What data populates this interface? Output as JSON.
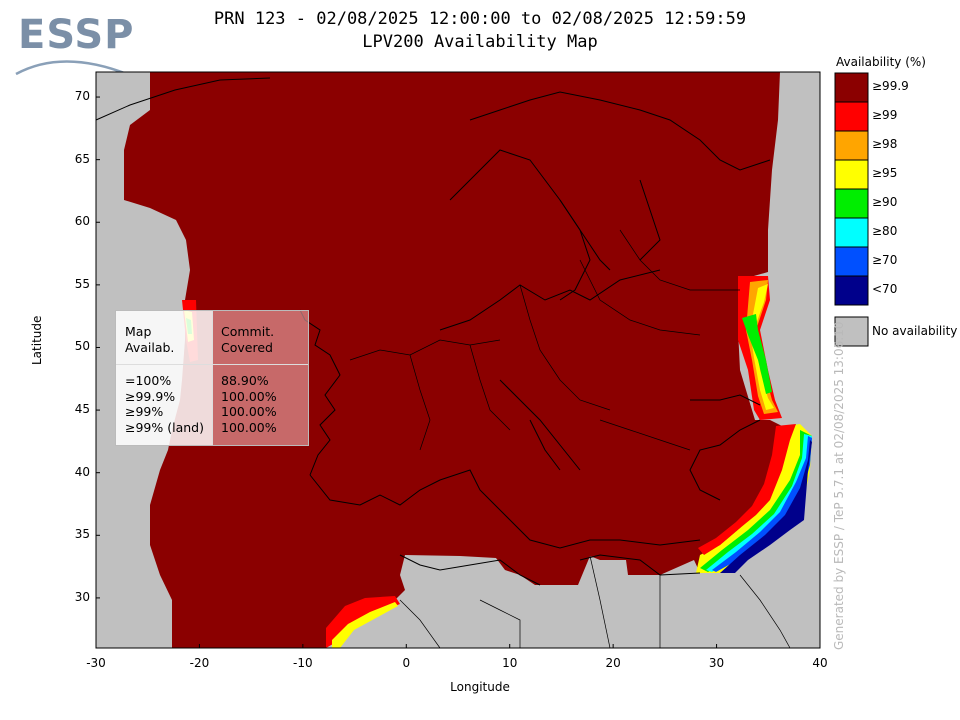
{
  "logo": {
    "text": "ESSP"
  },
  "title": {
    "line1": "PRN 123 - 02/08/2025 12:00:00 to 02/08/2025 12:59:59",
    "line2": "LPV200 Availability Map"
  },
  "axes": {
    "xlabel": "Longitude",
    "ylabel": "Latitude",
    "x_ticks": [
      "-30",
      "-20",
      "-10",
      "0",
      "10",
      "20",
      "30",
      "40"
    ],
    "y_ticks": [
      "30",
      "35",
      "40",
      "45",
      "50",
      "55",
      "60",
      "65",
      "70"
    ],
    "x_range": [
      -30,
      40
    ],
    "y_range": [
      26,
      72
    ]
  },
  "legend": {
    "title": "Availability (%)",
    "items": [
      {
        "label": "≥99.9",
        "color": "#8b0000"
      },
      {
        "label": "≥99",
        "color": "#ff0000"
      },
      {
        "label": "≥98",
        "color": "#ffa500"
      },
      {
        "label": "≥95",
        "color": "#ffff00"
      },
      {
        "label": "≥90",
        "color": "#00ee00"
      },
      {
        "label": "≥80",
        "color": "#00ffff"
      },
      {
        "label": "≥70",
        "color": "#0050ff"
      },
      {
        "label": "<70",
        "color": "#00008b"
      }
    ],
    "no_availability": {
      "label": "No availability",
      "color": "#c0c0c0"
    }
  },
  "stats_table": {
    "header_col1": [
      "Map",
      "Availab."
    ],
    "header_col2": [
      "Commit.",
      "Covered"
    ],
    "rows": [
      {
        "avail": "=100%",
        "covered": "88.90%"
      },
      {
        "avail": "≥99.9%",
        "covered": "100.00%"
      },
      {
        "avail": "≥99%",
        "covered": "100.00%"
      },
      {
        "avail": "≥99% (land)",
        "covered": "100.00%"
      }
    ]
  },
  "footer_note": "Generated by ESSP / TeP 5.7.1 at 02/08/2025 13:06:10",
  "colors": {
    "no_coverage": "#c0c0c0",
    "full": "#8b0000"
  }
}
